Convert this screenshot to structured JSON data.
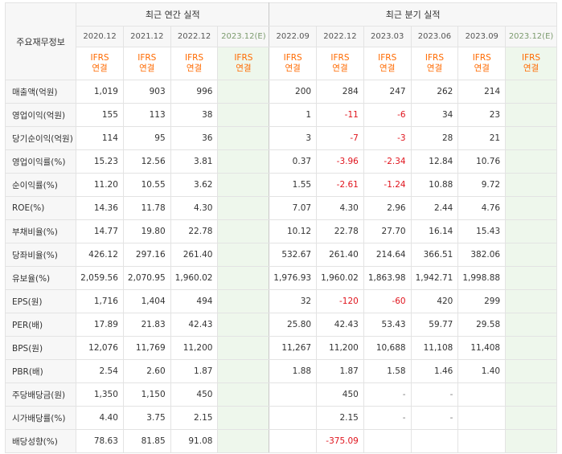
{
  "header": {
    "row_label": "주요재무정보",
    "annual_group": "최근 연간 실적",
    "quarter_group": "최근 분기 실적"
  },
  "annual_periods": [
    "2020.12",
    "2021.12",
    "2022.12",
    "2023.12(E)"
  ],
  "quarter_periods": [
    "2022.09",
    "2022.12",
    "2023.03",
    "2023.06",
    "2023.09",
    "2023.12(E)"
  ],
  "standard": {
    "line1": "IFRS",
    "line2": "연결"
  },
  "rows": [
    {
      "label": "매출액(억원)",
      "annual": [
        "1,019",
        "903",
        "996",
        ""
      ],
      "quarter": [
        "200",
        "284",
        "247",
        "262",
        "214",
        ""
      ]
    },
    {
      "label": "영업이익(억원)",
      "annual": [
        "155",
        "113",
        "38",
        ""
      ],
      "quarter": [
        "1",
        "-11",
        "-6",
        "34",
        "23",
        ""
      ]
    },
    {
      "label": "당기순이익(억원)",
      "annual": [
        "114",
        "95",
        "36",
        ""
      ],
      "quarter": [
        "3",
        "-7",
        "-3",
        "28",
        "21",
        ""
      ]
    },
    {
      "label": "영업이익률(%)",
      "annual": [
        "15.23",
        "12.56",
        "3.81",
        ""
      ],
      "quarter": [
        "0.37",
        "-3.96",
        "-2.34",
        "12.84",
        "10.76",
        ""
      ]
    },
    {
      "label": "순이익률(%)",
      "annual": [
        "11.20",
        "10.55",
        "3.62",
        ""
      ],
      "quarter": [
        "1.55",
        "-2.61",
        "-1.24",
        "10.88",
        "9.72",
        ""
      ]
    },
    {
      "label": "ROE(%)",
      "annual": [
        "14.36",
        "11.78",
        "4.30",
        ""
      ],
      "quarter": [
        "7.07",
        "4.30",
        "2.96",
        "2.44",
        "4.76",
        ""
      ]
    },
    {
      "label": "부채비율(%)",
      "annual": [
        "14.77",
        "19.80",
        "22.78",
        ""
      ],
      "quarter": [
        "10.12",
        "22.78",
        "27.70",
        "16.14",
        "15.43",
        ""
      ]
    },
    {
      "label": "당좌비율(%)",
      "annual": [
        "426.12",
        "297.16",
        "261.40",
        ""
      ],
      "quarter": [
        "532.67",
        "261.40",
        "214.64",
        "366.51",
        "382.06",
        ""
      ]
    },
    {
      "label": "유보율(%)",
      "annual": [
        "2,059.56",
        "2,070.95",
        "1,960.02",
        ""
      ],
      "quarter": [
        "1,976.93",
        "1,960.02",
        "1,863.98",
        "1,942.71",
        "1,998.88",
        ""
      ]
    },
    {
      "label": "EPS(원)",
      "annual": [
        "1,716",
        "1,404",
        "494",
        ""
      ],
      "quarter": [
        "32",
        "-120",
        "-60",
        "420",
        "299",
        ""
      ]
    },
    {
      "label": "PER(배)",
      "annual": [
        "17.89",
        "21.83",
        "42.43",
        ""
      ],
      "quarter": [
        "25.80",
        "42.43",
        "53.43",
        "59.77",
        "29.58",
        ""
      ]
    },
    {
      "label": "BPS(원)",
      "annual": [
        "12,076",
        "11,769",
        "11,200",
        ""
      ],
      "quarter": [
        "11,267",
        "11,200",
        "10,688",
        "11,108",
        "11,408",
        ""
      ]
    },
    {
      "label": "PBR(배)",
      "annual": [
        "2.54",
        "2.60",
        "1.87",
        ""
      ],
      "quarter": [
        "1.88",
        "1.87",
        "1.58",
        "1.46",
        "1.40",
        ""
      ]
    },
    {
      "label": "주당배당금(원)",
      "annual": [
        "1,350",
        "1,150",
        "450",
        ""
      ],
      "quarter": [
        "",
        "450",
        "-",
        "-",
        "",
        ""
      ]
    },
    {
      "label": "시가배당률(%)",
      "annual": [
        "4.40",
        "3.75",
        "2.15",
        ""
      ],
      "quarter": [
        "",
        "2.15",
        "-",
        "-",
        "",
        ""
      ]
    },
    {
      "label": "배당성향(%)",
      "annual": [
        "78.63",
        "81.85",
        "91.08",
        ""
      ],
      "quarter": [
        "",
        "-375.09",
        "",
        "",
        "",
        ""
      ]
    }
  ],
  "colors": {
    "negative": "#e0141d",
    "ifrs": "#ff6a00",
    "estimate_bg": "#eef7ec",
    "header_bg": "#f7f7f7"
  }
}
